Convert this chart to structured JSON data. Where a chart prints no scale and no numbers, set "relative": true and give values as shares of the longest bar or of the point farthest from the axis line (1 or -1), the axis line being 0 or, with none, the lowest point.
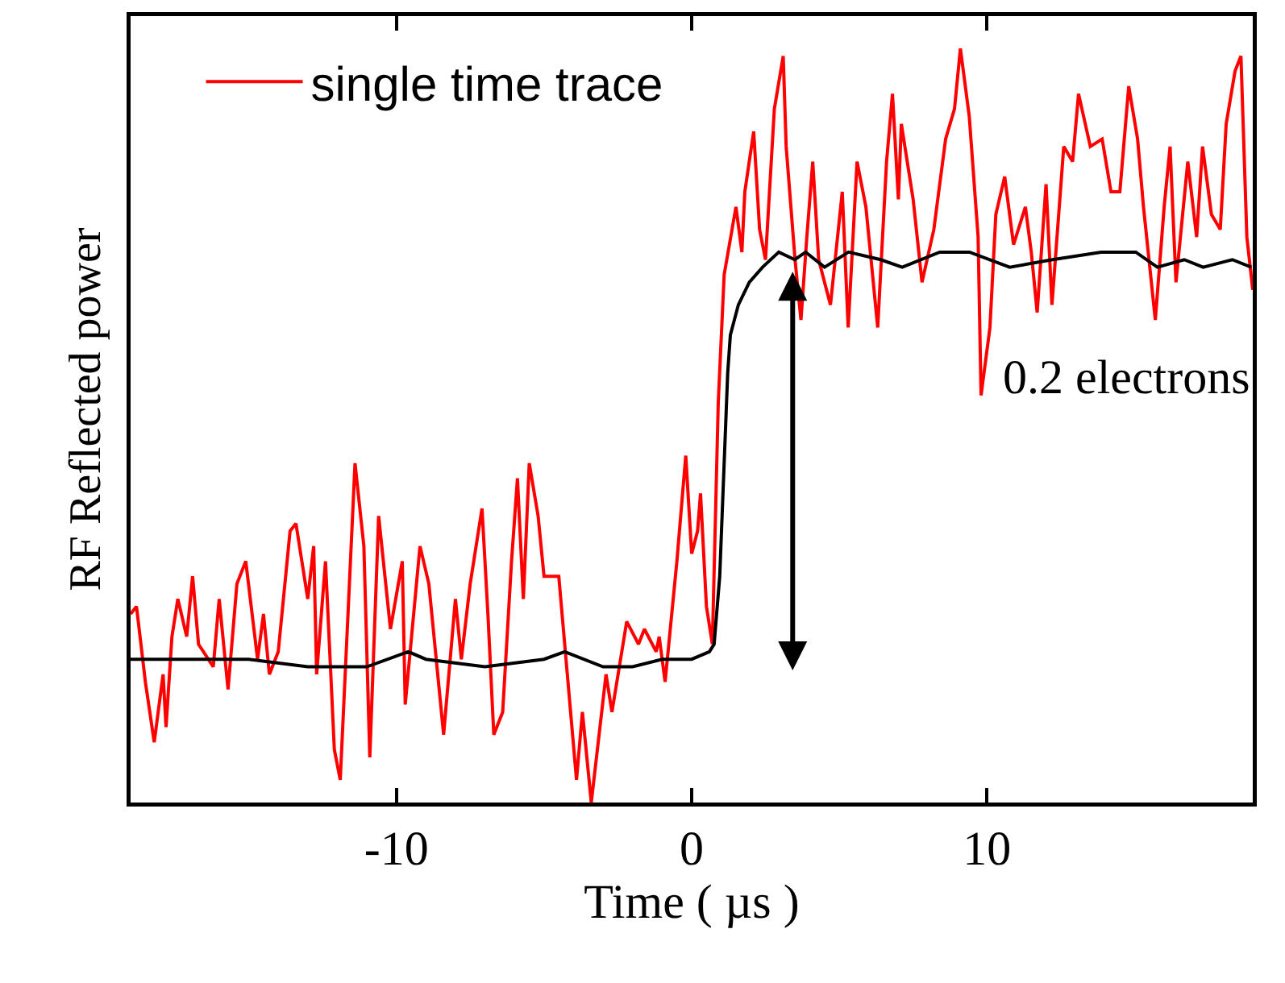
{
  "chart_data": {
    "type": "line",
    "xlabel": "Time ( µs )",
    "ylabel": "RF Reflected power",
    "relative": true,
    "xlim": [
      -19,
      19
    ],
    "xticks": [
      -10,
      0,
      10
    ],
    "legend": "top left",
    "grid": false,
    "line_style": "solid",
    "annotations": [
      "0.2 electrons"
    ],
    "series": [
      {
        "name": "single time trace",
        "color": "#ff0000",
        "x": [
          -19,
          -18.8,
          -18.5,
          -18.2,
          -17.9,
          -17.8,
          -17.6,
          -17.4,
          -17.1,
          -16.9,
          -16.7,
          -16.2,
          -16,
          -15.7,
          -15.4,
          -15.1,
          -14.7,
          -14.5,
          -14.3,
          -14,
          -13.6,
          -13.4,
          -13,
          -12.8,
          -12.7,
          -12.4,
          -12.1,
          -11.9,
          -11.4,
          -11.1,
          -10.9,
          -10.6,
          -10.2,
          -9.8,
          -9.7,
          -9.2,
          -8.9,
          -8.4,
          -8,
          -7.8,
          -7.5,
          -7.1,
          -6.9,
          -6.7,
          -6.4,
          -6.1,
          -5.9,
          -5.7,
          -5.5,
          -5.2,
          -5,
          -4.5,
          -3.9,
          -3.7,
          -3.4,
          -2.9,
          -2.7,
          -2.2,
          -1.8,
          -1.6,
          -1.2,
          -1.1,
          -0.9,
          -0.5,
          -0.2,
          0,
          0.2,
          0.3,
          0.5,
          0.7,
          0.9,
          1.1,
          1.5,
          1.7,
          1.8,
          2.1,
          2.3,
          2.5,
          2.8,
          3.1,
          3.2,
          3.5,
          3.7,
          3.9,
          4.1,
          4.3,
          4.7,
          5.1,
          5.3,
          5.6,
          5.9,
          6.3,
          6.6,
          6.8,
          7,
          7.1,
          7.5,
          7.8,
          8.2,
          8.6,
          8.9,
          9.1,
          9.4,
          9.7,
          9.8,
          10.1,
          10.3,
          10.6,
          10.9,
          11.3,
          11.5,
          11.7,
          12,
          12.2,
          12.6,
          12.9,
          13.1,
          13.5,
          13.9,
          14.2,
          14.5,
          14.8,
          15.1,
          15.3,
          15.7,
          16,
          16.2,
          16.4,
          16.8,
          17.1,
          17.3,
          17.6,
          17.9,
          18.1,
          18.4,
          18.6,
          18.8,
          19
        ],
        "values": [
          0.25,
          0.26,
          0.16,
          0.08,
          0.17,
          0.1,
          0.22,
          0.27,
          0.22,
          0.3,
          0.21,
          0.18,
          0.27,
          0.15,
          0.29,
          0.32,
          0.19,
          0.25,
          0.17,
          0.2,
          0.36,
          0.37,
          0.27,
          0.34,
          0.17,
          0.32,
          0.07,
          0.03,
          0.45,
          0.34,
          0.06,
          0.38,
          0.23,
          0.32,
          0.13,
          0.34,
          0.29,
          0.09,
          0.27,
          0.19,
          0.29,
          0.39,
          0.25,
          0.09,
          0.12,
          0.32,
          0.43,
          0.27,
          0.45,
          0.38,
          0.3,
          0.3,
          0.03,
          0.12,
          0,
          0.17,
          0.12,
          0.24,
          0.21,
          0.23,
          0.2,
          0.22,
          0.16,
          0.32,
          0.46,
          0.33,
          0.36,
          0.41,
          0.26,
          0.21,
          0.53,
          0.7,
          0.79,
          0.73,
          0.81,
          0.89,
          0.76,
          0.72,
          0.92,
          0.99,
          0.87,
          0.72,
          0.64,
          0.75,
          0.85,
          0.72,
          0.66,
          0.81,
          0.63,
          0.85,
          0.79,
          0.63,
          0.85,
          0.94,
          0.8,
          0.9,
          0.8,
          0.69,
          0.76,
          0.88,
          0.92,
          1,
          0.91,
          0.75,
          0.54,
          0.63,
          0.78,
          0.83,
          0.74,
          0.79,
          0.73,
          0.65,
          0.82,
          0.66,
          0.87,
          0.85,
          0.94,
          0.87,
          0.88,
          0.81,
          0.81,
          0.95,
          0.88,
          0.79,
          0.64,
          0.79,
          0.87,
          0.69,
          0.85,
          0.75,
          0.87,
          0.78,
          0.76,
          0.9,
          0.97,
          0.99,
          0.75,
          0.68
        ]
      },
      {
        "color": "#000000",
        "x": [
          -19,
          -17,
          -15,
          -13,
          -11,
          -9.6,
          -9,
          -7,
          -5,
          -4.3,
          -3,
          -2,
          -1,
          0,
          0.6,
          0.76,
          0.95,
          1.22,
          1.31,
          1.58,
          1.95,
          2.4,
          2.95,
          3.49,
          3.86,
          4.5,
          5.31,
          6.4,
          7.13,
          8.4,
          9.41,
          10.77,
          12.22,
          13.86,
          15.04,
          15.77,
          16.68,
          17.32,
          18.31,
          18.95
        ],
        "values": [
          0.19,
          0.19,
          0.19,
          0.18,
          0.18,
          0.2,
          0.19,
          0.18,
          0.19,
          0.2,
          0.18,
          0.18,
          0.19,
          0.19,
          0.2,
          0.21,
          0.3,
          0.57,
          0.62,
          0.66,
          0.69,
          0.71,
          0.73,
          0.72,
          0.73,
          0.71,
          0.73,
          0.72,
          0.71,
          0.73,
          0.73,
          0.71,
          0.72,
          0.73,
          0.73,
          0.71,
          0.72,
          0.71,
          0.72,
          0.71
        ]
      }
    ]
  }
}
